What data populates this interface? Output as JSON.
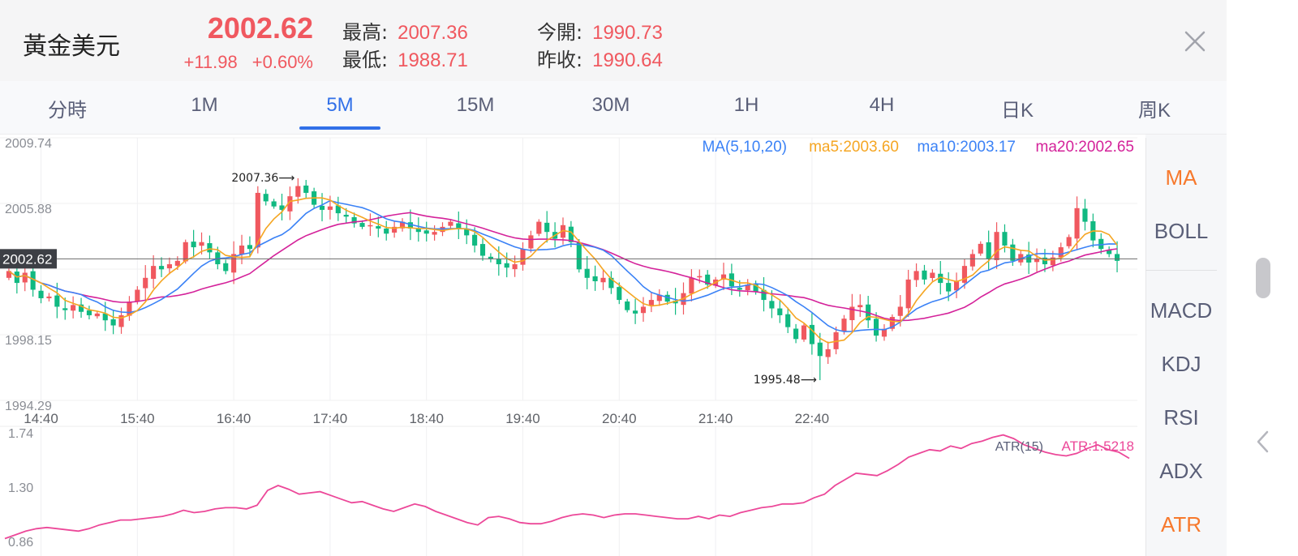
{
  "header": {
    "symbol": "黃金美元",
    "price": "2002.62",
    "change": "+11.98",
    "change_pct": "+0.60%",
    "high_label": "最高:",
    "high": "2007.36",
    "low_label": "最低:",
    "low": "1988.71",
    "open_label": "今開:",
    "open": "1990.73",
    "prev_close_label": "昨收:",
    "prev_close": "1990.64"
  },
  "tabs": [
    "分時",
    "1M",
    "5M",
    "15M",
    "30M",
    "1H",
    "4H",
    "日K",
    "周K"
  ],
  "active_tab": "5M",
  "indicators": [
    "MA",
    "BOLL",
    "MACD",
    "KDJ",
    "RSI",
    "ADX",
    "ATR"
  ],
  "active_indicators": [
    "MA",
    "ATR"
  ],
  "colors": {
    "up": "#f0585f",
    "down": "#10b981",
    "ma5": "#f5a623",
    "ma10": "#3b82f6",
    "ma20": "#d4229a",
    "atr": "#ec4899",
    "accent": "#3170e8"
  },
  "icons": {
    "close": "close-icon",
    "back": "chevron-left-icon"
  },
  "chart_data": [
    {
      "type": "candlestick",
      "y_ticks": [
        "2009.74",
        "2005.88",
        "1998.15",
        "1994.29"
      ],
      "ylim": [
        1994.29,
        2009.74
      ],
      "x_ticks": [
        "14:40",
        "15:40",
        "16:40",
        "17:40",
        "18:40",
        "19:40",
        "20:40",
        "21:40",
        "22:40"
      ],
      "current_price": "2002.62",
      "legend": {
        "title": "MA(5,10,20)",
        "ma5": "ma5:2003.60",
        "ma10": "ma10:2003.17",
        "ma20": "ma20:2002.65"
      },
      "annotations": {
        "high": "2007.36",
        "low": "1995.48"
      },
      "closes": [
        2001.9,
        2001.2,
        2001.8,
        2000.8,
        2000.3,
        2000.4,
        1999.8,
        1999.6,
        1999.9,
        1999.5,
        1999.3,
        1999.4,
        1999.0,
        1998.7,
        1999.3,
        2000.1,
        2000.8,
        2001.5,
        2002.2,
        2002.0,
        2002.3,
        2002.5,
        2003.6,
        2003.3,
        2003.6,
        2003.0,
        2002.3,
        2001.9,
        2002.9,
        2003.4,
        2003.2,
        2006.5,
        2006.0,
        2005.7,
        2005.5,
        2006.3,
        2006.9,
        2006.5,
        2005.8,
        2005.5,
        2005.7,
        2005.3,
        2005.1,
        2004.7,
        2004.5,
        2004.6,
        2004.4,
        2004.1,
        2004.5,
        2004.8,
        2004.4,
        2004.2,
        2004.1,
        2004.2,
        2004.5,
        2004.8,
        2004.4,
        2004.0,
        2003.4,
        2002.8,
        2002.6,
        2002.3,
        2002.1,
        2002.3,
        2003.2,
        2004.0,
        2004.8,
        2004.2,
        2003.8,
        2004.6,
        2003.6,
        2002.0,
        2001.5,
        2001.3,
        2001.5,
        2000.9,
        2000.2,
        1999.6,
        1999.4,
        1999.8,
        2000.2,
        2000.5,
        2000.1,
        2000.0,
        2000.6,
        2001.5,
        2001.6,
        2001.1,
        2001.4,
        2001.7,
        2001.0,
        2000.8,
        2001.1,
        2000.7,
        2000.2,
        1999.7,
        1999.3,
        1998.6,
        1997.9,
        1998.7,
        1997.6,
        1996.9,
        1997.3,
        1998.3,
        1999.1,
        1999.8,
        1999.9,
        1999.0,
        1998.1,
        1998.5,
        1999.2,
        1999.8,
        2001.4,
        2001.9,
        2001.4,
        2001.8,
        2001.2,
        2000.7,
        2001.3,
        2002.2,
        2002.9,
        2003.5,
        2002.6,
        2004.2,
        2003.4,
        2002.5,
        2002.9,
        2002.4,
        2002.6,
        2002.3,
        2002.7,
        2003.3,
        2003.9,
        2005.6,
        2004.8,
        2003.7,
        2003.2,
        2002.9,
        2002.5
      ]
    },
    {
      "type": "line",
      "title": "ATR(15)",
      "value_label": "ATR:1.5218",
      "y_ticks": [
        "1.74",
        "1.30",
        "0.86"
      ],
      "ylim": [
        0.86,
        1.74
      ],
      "values": [
        0.87,
        0.9,
        0.93,
        0.95,
        0.96,
        0.95,
        0.94,
        0.93,
        0.95,
        0.98,
        1.0,
        1.02,
        1.02,
        1.03,
        1.04,
        1.05,
        1.07,
        1.1,
        1.08,
        1.09,
        1.11,
        1.12,
        1.12,
        1.11,
        1.14,
        1.26,
        1.3,
        1.27,
        1.23,
        1.24,
        1.25,
        1.22,
        1.19,
        1.16,
        1.17,
        1.14,
        1.11,
        1.09,
        1.12,
        1.15,
        1.13,
        1.09,
        1.06,
        1.03,
        1.0,
        0.98,
        1.04,
        1.05,
        1.03,
        1.0,
        0.99,
        0.99,
        1.01,
        1.04,
        1.06,
        1.07,
        1.06,
        1.04,
        1.06,
        1.07,
        1.07,
        1.06,
        1.05,
        1.04,
        1.03,
        1.03,
        1.05,
        1.03,
        1.06,
        1.05,
        1.08,
        1.1,
        1.12,
        1.13,
        1.15,
        1.15,
        1.16,
        1.2,
        1.23,
        1.3,
        1.35,
        1.4,
        1.39,
        1.38,
        1.42,
        1.47,
        1.53,
        1.56,
        1.59,
        1.58,
        1.62,
        1.6,
        1.64,
        1.66,
        1.69,
        1.71,
        1.68,
        1.63,
        1.6,
        1.57,
        1.55,
        1.54,
        1.56,
        1.6,
        1.63,
        1.59,
        1.57,
        1.52
      ]
    }
  ]
}
